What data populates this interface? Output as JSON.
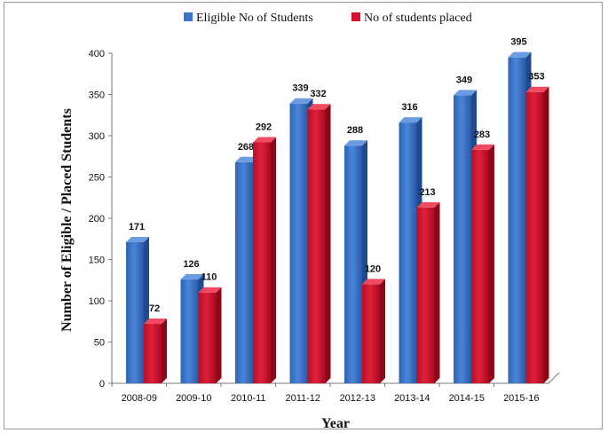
{
  "chart_data": {
    "type": "bar",
    "categories": [
      "2008-09",
      "2009-10",
      "2010-11",
      "2011-12",
      "2012-13",
      "2013-14",
      "2014-15",
      "2015-16"
    ],
    "series": [
      {
        "name": "Eligible No of Students",
        "values": [
          171,
          126,
          268,
          339,
          288,
          316,
          349,
          395
        ],
        "color": "#3b74c9"
      },
      {
        "name": "No of students placed",
        "values": [
          72,
          110,
          292,
          332,
          120,
          213,
          283,
          353
        ],
        "color": "#d2122e"
      }
    ],
    "xlabel": "Year",
    "ylabel": "Number of Eligible  /  Placed Students",
    "ylim": [
      0,
      400
    ],
    "yticks": [
      0,
      50,
      100,
      150,
      200,
      250,
      300,
      350,
      400
    ],
    "grid": false,
    "legend_position": "top-center"
  }
}
